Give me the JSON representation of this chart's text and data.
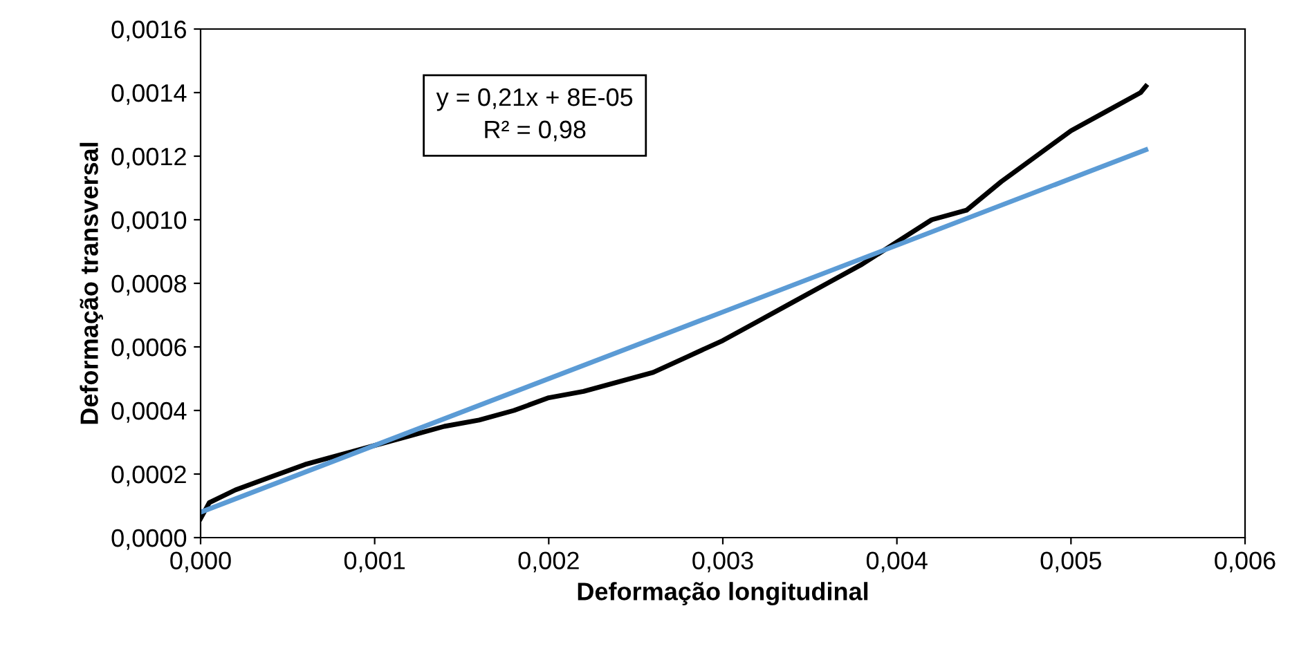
{
  "chart_data": {
    "type": "line",
    "xlabel": "Deformação longitudinal",
    "ylabel": "Deformação transversal",
    "series": [
      {
        "color": "#000000",
        "x": [
          0,
          5e-05,
          0.0002,
          0.0004,
          0.0006,
          0.0008,
          0.001,
          0.0012,
          0.0014,
          0.0016,
          0.0018,
          0.002,
          0.0022,
          0.0024,
          0.0026,
          0.0028,
          0.003,
          0.0032,
          0.0034,
          0.0036,
          0.0038,
          0.004,
          0.0042,
          0.0044,
          0.0046,
          0.0048,
          0.005,
          0.0052,
          0.0054,
          0.00543
        ],
        "values": [
          6e-05,
          0.00011,
          0.00015,
          0.00019,
          0.00023,
          0.00026,
          0.00029,
          0.00032,
          0.00035,
          0.00037,
          0.0004,
          0.00044,
          0.00046,
          0.00049,
          0.00052,
          0.00057,
          0.00062,
          0.00068,
          0.00074,
          0.0008,
          0.00086,
          0.00093,
          0.001,
          0.00103,
          0.00112,
          0.0012,
          0.00128,
          0.00134,
          0.0014,
          0.00142
        ]
      },
      {
        "color": "#5b9bd5",
        "x": [
          0,
          0.00543
        ],
        "values": [
          8e-05,
          0.00122
        ]
      }
    ],
    "annotations": [
      "y = 0,21x + 8E-05\nR² = 0,98"
    ],
    "xlim": [
      0,
      0.006
    ],
    "ylim": [
      0,
      0.0016
    ],
    "xticks": [
      {
        "value": 0,
        "label": "0,000"
      },
      {
        "value": 0.001,
        "label": "0,001"
      },
      {
        "value": 0.002,
        "label": "0,002"
      },
      {
        "value": 0.003,
        "label": "0,003"
      },
      {
        "value": 0.004,
        "label": "0,004"
      },
      {
        "value": 0.005,
        "label": "0,005"
      },
      {
        "value": 0.006,
        "label": "0,006"
      }
    ],
    "yticks": [
      {
        "value": 0,
        "label": "0,0000"
      },
      {
        "value": 0.0002,
        "label": "0,0002"
      },
      {
        "value": 0.0004,
        "label": "0,0004"
      },
      {
        "value": 0.0006,
        "label": "0,0006"
      },
      {
        "value": 0.0008,
        "label": "0,0008"
      },
      {
        "value": 0.001,
        "label": "0,0010"
      },
      {
        "value": 0.0012,
        "label": "0,0012"
      },
      {
        "value": 0.0014,
        "label": "0,0014"
      },
      {
        "value": 0.0016,
        "label": "0,0016"
      }
    ],
    "grid": false,
    "legend": false
  }
}
